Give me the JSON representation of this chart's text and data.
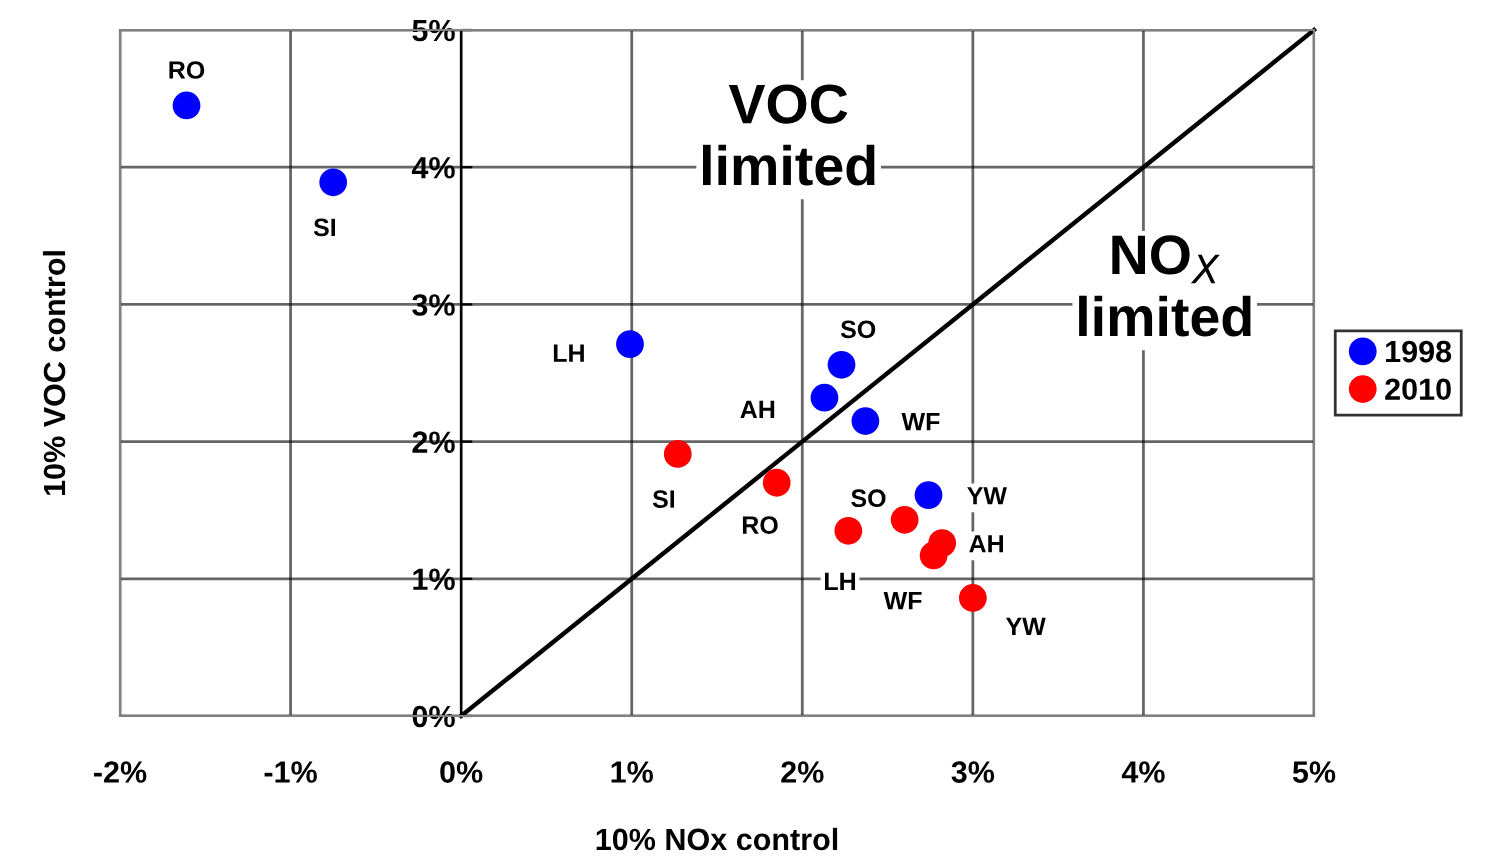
{
  "chart_data": {
    "type": "scatter",
    "xlabel": "10% NOx control",
    "ylabel": "10% VOC control",
    "xlim": [
      -2,
      5
    ],
    "ylim": [
      0,
      5
    ],
    "xticks": [
      {
        "value": -2,
        "label": "-2%"
      },
      {
        "value": -1,
        "label": "-1%"
      },
      {
        "value": 0,
        "label": "0%"
      },
      {
        "value": 1,
        "label": "1%"
      },
      {
        "value": 2,
        "label": "2%"
      },
      {
        "value": 3,
        "label": "3%"
      },
      {
        "value": 4,
        "label": "4%"
      },
      {
        "value": 5,
        "label": "5%"
      }
    ],
    "yticks": [
      {
        "value": 0,
        "label": "0%"
      },
      {
        "value": 1,
        "label": "1%"
      },
      {
        "value": 2,
        "label": "2%"
      },
      {
        "value": 3,
        "label": "3%"
      },
      {
        "value": 4,
        "label": "4%"
      },
      {
        "value": 5,
        "label": "5%"
      }
    ],
    "grid": true,
    "legend": "right",
    "marker": "circle",
    "series": [
      {
        "name": "1998",
        "color": "#0000ff",
        "x": [
          -1.61,
          -0.75,
          0.99,
          2.23,
          2.13,
          2.37,
          2.74
        ],
        "values": [
          4.45,
          3.89,
          2.71,
          2.56,
          2.32,
          2.15,
          1.61
        ]
      },
      {
        "name": "2010",
        "color": "#ff0000",
        "x": [
          1.27,
          1.85,
          2.27,
          2.6,
          2.82,
          2.77,
          3.0
        ],
        "values": [
          1.91,
          1.7,
          1.35,
          1.43,
          1.26,
          1.17,
          0.86
        ]
      },
      {
        "type": "line",
        "color": "#000000",
        "x": [
          0,
          5
        ],
        "values": [
          0,
          5
        ],
        "marker": "none"
      }
    ],
    "annotations": [
      "VOC\nlimited",
      "NO$_{X}$\nlimited",
      {
        "text": "RO",
        "x": -1.61,
        "y": 4.45
      },
      {
        "text": "SI",
        "x": -0.75,
        "y": 3.89
      },
      {
        "text": "LH",
        "x": 0.99,
        "y": 2.71
      },
      {
        "text": "SO",
        "x": 2.23,
        "y": 2.56
      },
      {
        "text": "AH",
        "x": 2.13,
        "y": 2.32
      },
      {
        "text": "WF",
        "x": 2.37,
        "y": 2.15
      },
      {
        "text": "YW",
        "x": 2.74,
        "y": 1.61
      },
      {
        "text": "SI",
        "x": 1.27,
        "y": 1.91
      },
      {
        "text": "RO",
        "x": 1.85,
        "y": 1.7
      },
      {
        "text": "LH",
        "x": 2.27,
        "y": 1.35
      },
      {
        "text": "SO",
        "x": 2.6,
        "y": 1.43
      },
      {
        "text": "AH",
        "x": 2.82,
        "y": 1.26
      },
      {
        "text": "WF",
        "x": 2.77,
        "y": 1.17
      },
      {
        "text": "YW",
        "x": 3.0,
        "y": 0.86
      }
    ]
  }
}
